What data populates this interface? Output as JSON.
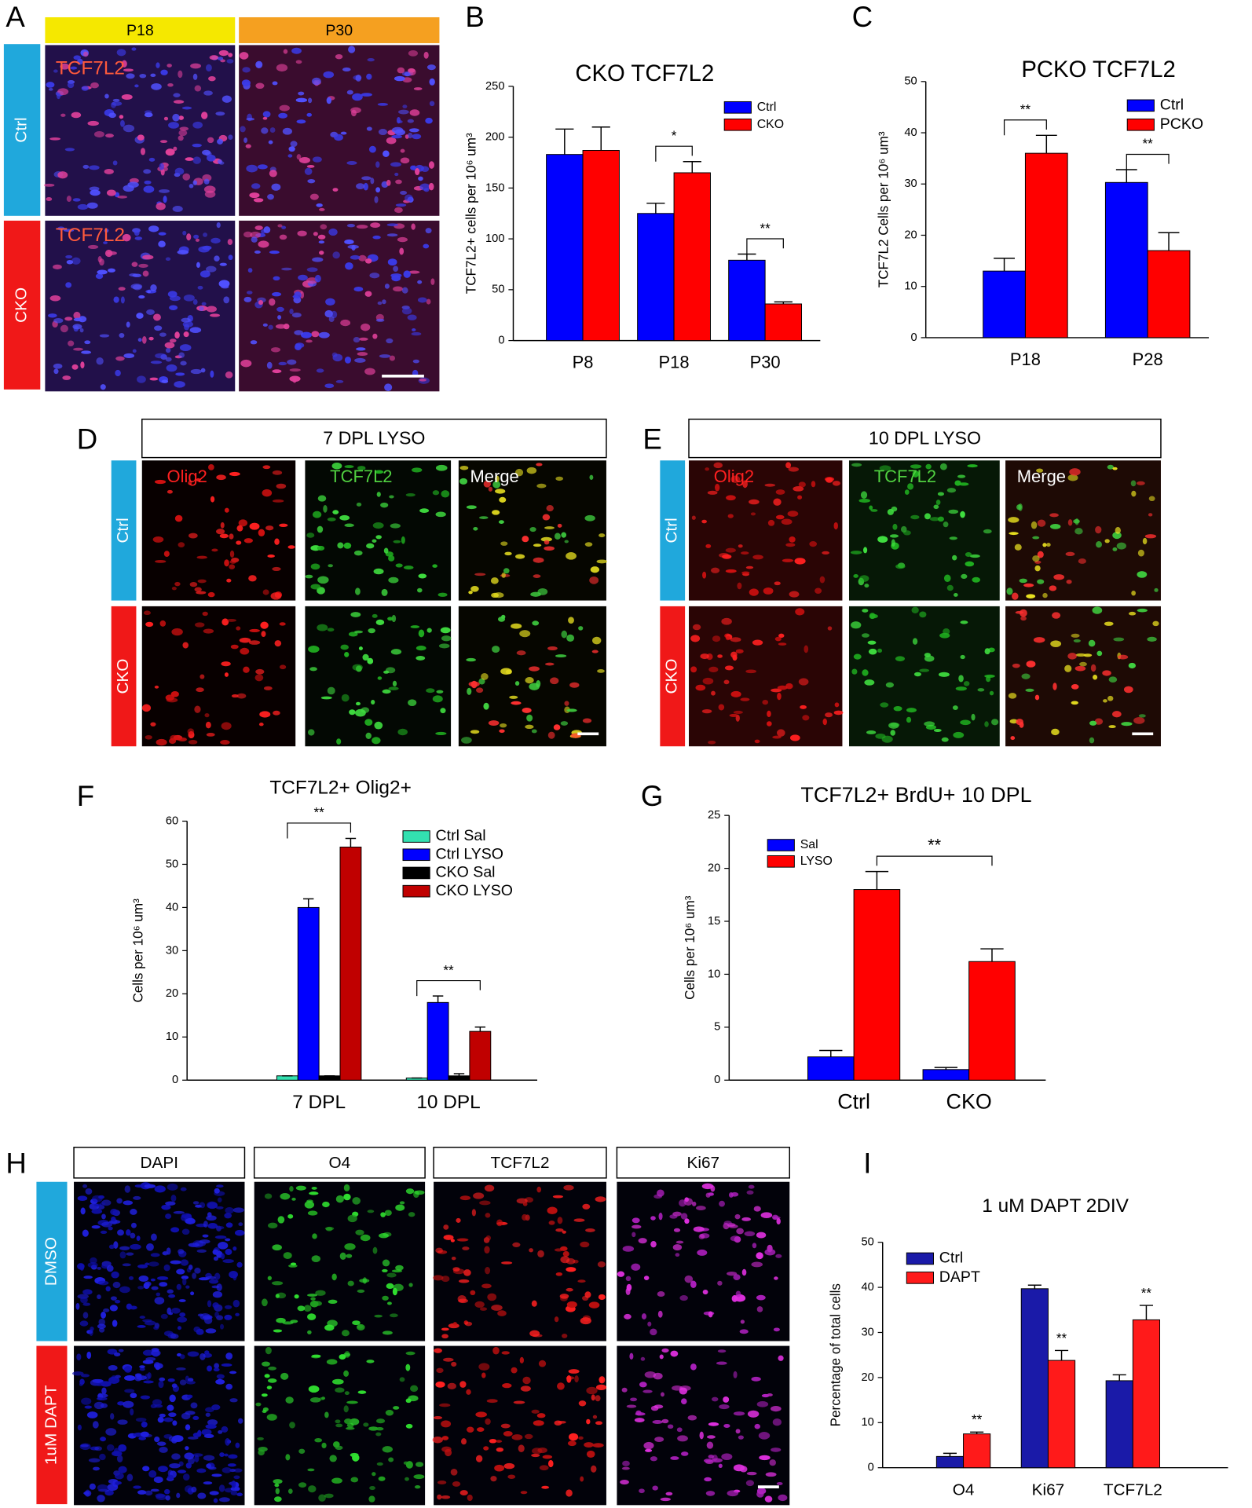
{
  "panel_A": {
    "letter": "A",
    "columns": [
      "P18",
      "P30"
    ],
    "rows": [
      "Ctrl",
      "CKO"
    ],
    "image_labels": [
      "TCF7L2",
      "TCF7L2"
    ]
  },
  "panel_D": {
    "letter": "D",
    "header": "7 DPL LYSO",
    "rows": [
      "Ctrl",
      "CKO"
    ],
    "channels": [
      "Olig2",
      "TCF7L2",
      "Merge"
    ]
  },
  "panel_E": {
    "letter": "E",
    "header": "10 DPL LYSO",
    "rows": [
      "Ctrl",
      "CKO"
    ],
    "channels": [
      "Olig2",
      "TCF7L2",
      "Merge"
    ]
  },
  "panel_H": {
    "letter": "H",
    "columns": [
      "DAPI",
      "O4",
      "TCF7L2",
      "Ki67"
    ],
    "rows": [
      "DMSO",
      "1uM DAPT"
    ]
  },
  "chart_letters": [
    "B",
    "C",
    "F",
    "G",
    "I"
  ],
  "chart_data": [
    {
      "type": "bar",
      "title": "CKO TCF7L2",
      "ylabel": "TCF7L2+ cells per 10⁶ um³",
      "categories": [
        "P8",
        "P18",
        "P30"
      ],
      "series": [
        {
          "name": "Ctrl",
          "color": "#0000ff",
          "values": [
            183,
            125,
            79
          ],
          "errors": [
            25,
            10,
            6
          ]
        },
        {
          "name": "CKO",
          "color": "#ff0000",
          "values": [
            187,
            165,
            36
          ],
          "errors": [
            23,
            11,
            2
          ]
        }
      ],
      "ylim": [
        0,
        250
      ],
      "yticks": [
        0,
        50,
        100,
        150,
        200,
        250
      ],
      "annotations": [
        {
          "text": "*",
          "categories": [
            "P18"
          ]
        },
        {
          "text": "**",
          "categories": [
            "P30"
          ]
        }
      ]
    },
    {
      "type": "bar",
      "title": "PCKO  TCF7L2",
      "ylabel": "TCF7L2 Cells per 10⁶ um³",
      "categories": [
        "P18",
        "P28"
      ],
      "series": [
        {
          "name": "Ctrl",
          "color": "#0000ff",
          "values": [
            13,
            30.3
          ],
          "errors": [
            2.5,
            2.5
          ]
        },
        {
          "name": "PCKO",
          "color": "#ff0000",
          "values": [
            36,
            17
          ],
          "errors": [
            3.5,
            3.5
          ]
        }
      ],
      "ylim": [
        0,
        50
      ],
      "yticks": [
        0,
        10,
        20,
        30,
        40,
        50
      ],
      "annotations": [
        {
          "text": "**",
          "categories": [
            "P18"
          ]
        },
        {
          "text": "**",
          "categories": [
            "P28"
          ]
        }
      ]
    },
    {
      "type": "bar",
      "title": "TCF7L2+ Olig2+",
      "ylabel": "Cells per 10⁶ um³",
      "categories": [
        "7 DPL",
        "10 DPL"
      ],
      "series": [
        {
          "name": "Ctrl Sal",
          "color": "#33e0b0",
          "values": [
            1,
            0.5
          ],
          "errors": [
            0,
            0
          ]
        },
        {
          "name": "Ctrl LYSO",
          "color": "#0000ff",
          "values": [
            40,
            18
          ],
          "errors": [
            2,
            1.5
          ]
        },
        {
          "name": "CKO Sal",
          "color": "#000000",
          "values": [
            1,
            1
          ],
          "errors": [
            0,
            0.5
          ]
        },
        {
          "name": "CKO LYSO",
          "color": "#c00000",
          "values": [
            54,
            11.3
          ],
          "errors": [
            2,
            1
          ]
        }
      ],
      "ylim": [
        0,
        60
      ],
      "yticks": [
        0,
        10,
        20,
        30,
        40,
        50,
        60
      ],
      "annotations": [
        {
          "text": "**",
          "categories": [
            "7 DPL"
          ]
        },
        {
          "text": "**",
          "categories": [
            "10 DPL"
          ]
        }
      ]
    },
    {
      "type": "bar",
      "title": "TCF7L2+ BrdU+ 10 DPL",
      "ylabel": "Cells per 10⁶ um³",
      "categories": [
        "Ctrl",
        "CKO"
      ],
      "series": [
        {
          "name": "Sal",
          "color": "#0000ff",
          "values": [
            2.2,
            1.0
          ],
          "errors": [
            0.6,
            0.2
          ]
        },
        {
          "name": "LYSO",
          "color": "#ff0000",
          "values": [
            18,
            11.2
          ],
          "errors": [
            1.7,
            1.2
          ]
        }
      ],
      "ylim": [
        0,
        25
      ],
      "yticks": [
        0,
        5,
        10,
        15,
        20,
        25
      ],
      "annotations": [
        {
          "text": "**",
          "categories": [
            "Ctrl",
            "CKO"
          ],
          "series": "LYSO"
        }
      ]
    },
    {
      "type": "bar",
      "title": "1 uM DAPT  2DIV",
      "ylabel": "Percentage of total cells",
      "categories": [
        "O4",
        "Ki67",
        "TCF7L2"
      ],
      "series": [
        {
          "name": "Ctrl",
          "color": "#1a1aa8",
          "values": [
            2.5,
            39.7,
            19.3
          ],
          "errors": [
            0.7,
            0.8,
            1.3
          ]
        },
        {
          "name": "DAPT",
          "color": "#ff1a1a",
          "values": [
            7.5,
            23.8,
            32.8
          ],
          "errors": [
            0.4,
            2.2,
            3.2
          ]
        }
      ],
      "ylim": [
        0,
        50
      ],
      "yticks": [
        0,
        10,
        20,
        30,
        40,
        50
      ],
      "annotations": [
        {
          "text": "**",
          "categories": [
            "O4"
          ],
          "series": "DAPT"
        },
        {
          "text": "**",
          "categories": [
            "Ki67"
          ],
          "series": "DAPT"
        },
        {
          "text": "**",
          "categories": [
            "TCF7L2"
          ],
          "series": "DAPT"
        }
      ]
    }
  ]
}
